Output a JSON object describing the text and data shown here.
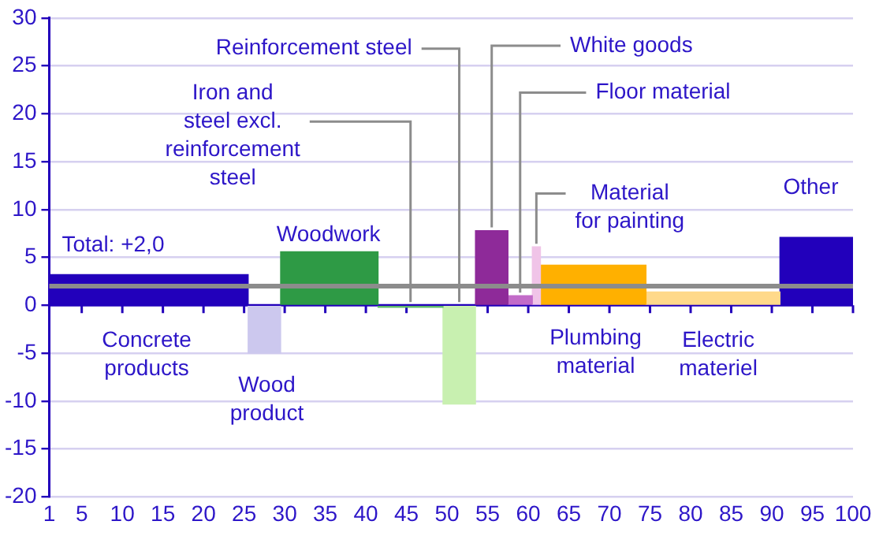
{
  "chart_data": {
    "type": "histogram",
    "bins": [
      1,
      25.5,
      29.5,
      41.5,
      49.5,
      53.5,
      57.5,
      60.5,
      61.5,
      74.5,
      91,
      100
    ],
    "values": [
      3.2,
      -5,
      5.6,
      -0.2,
      -10.3,
      7.8,
      1,
      6.1,
      4.2,
      1.4,
      7.1
    ],
    "colors": [
      "#2200bb",
      "#ccc8ee",
      "#2e9a45",
      "#5fb86a",
      "#c8f0b0",
      "#8e2a99",
      "#c26bc8",
      "#f0c4e8",
      "#ffb000",
      "#ffd98a",
      "#2200bb"
    ],
    "xlim": [
      1,
      100
    ],
    "xticks": [
      1,
      5,
      10,
      15,
      20,
      25,
      30,
      35,
      40,
      45,
      50,
      55,
      60,
      65,
      70,
      75,
      80,
      85,
      90,
      95,
      100
    ],
    "ylim": [
      -20,
      30
    ],
    "yticks": [
      -20,
      -15,
      -10,
      -5,
      0,
      5,
      10,
      15,
      20,
      25,
      30
    ],
    "grid": "y",
    "ref_lines": [
      {
        "axis": "y",
        "value": 0,
        "color": "#2200bb"
      },
      {
        "axis": "y",
        "value": 2,
        "label": "Total: +2,0",
        "color": "#8c8c8c"
      }
    ],
    "annotations": [
      "Concrete\nproducts",
      "Wood\nproduct",
      "Woodwork",
      {
        "text": "Iron and\nsteel excl.\nreinforcement\nsteel",
        "x": 45.5,
        "y": -0.2
      },
      {
        "text": "Reinforcement steel",
        "x": 51.5,
        "y": 0
      },
      {
        "text": "White goods",
        "x": 55.5,
        "y": 7.8
      },
      {
        "text": "Floor material",
        "x": 59,
        "y": 1
      },
      {
        "text": "Material\nfor painting",
        "x": 61,
        "y": 6.1
      },
      "Plumbing\nmaterial",
      "Electric\nmateriel",
      "Other"
    ]
  }
}
